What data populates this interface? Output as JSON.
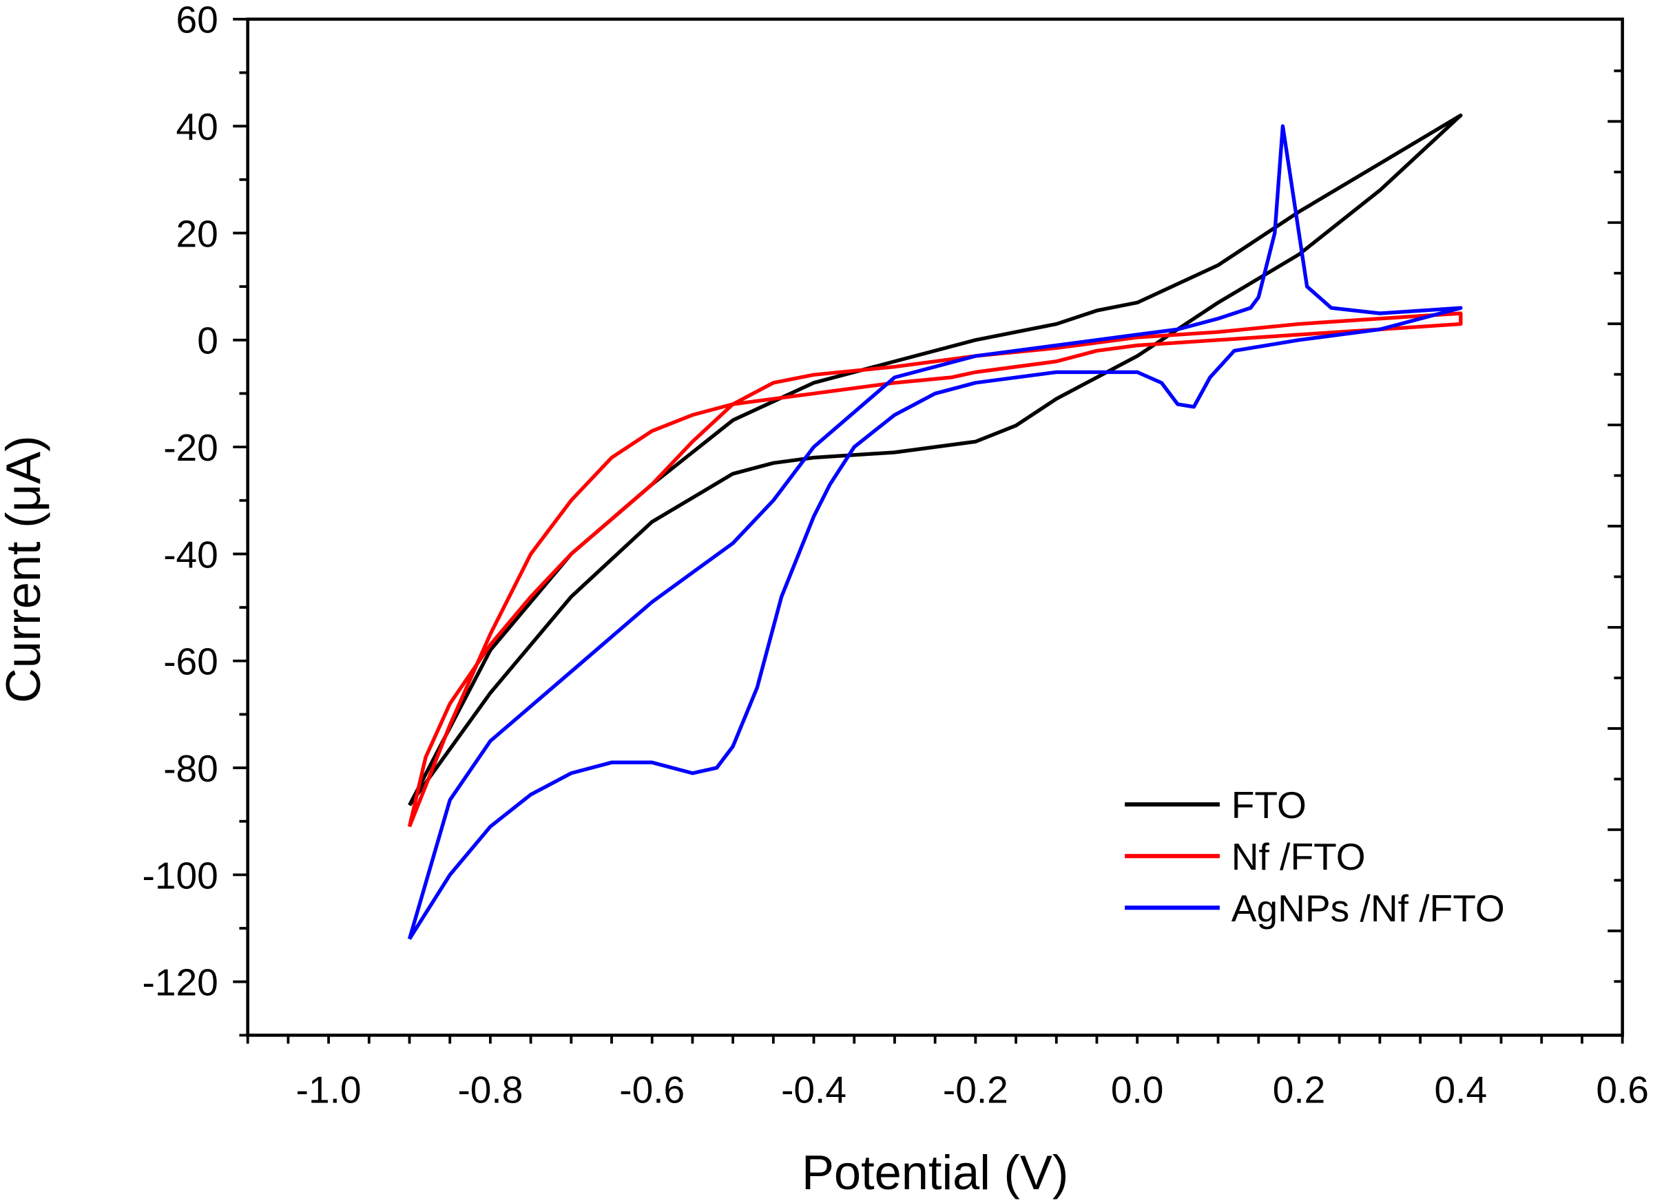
{
  "chart_data": {
    "type": "line",
    "title": "",
    "xlabel": "Potential (V)",
    "ylabel": "Current (μA)",
    "xlim": [
      -1.1,
      0.6
    ],
    "ylim": [
      -130,
      60
    ],
    "xticks": [
      "-1.0",
      "-0.8",
      "-0.6",
      "-0.4",
      "-0.2",
      "0.0",
      "0.2",
      "0.4",
      "0.6"
    ],
    "yticks": [
      "60",
      "40",
      "20",
      "0",
      "-20",
      "-40",
      "-60",
      "-80",
      "-100",
      "-120"
    ],
    "grid": false,
    "legend_position": "bottom-right",
    "series": [
      {
        "name": "FTO",
        "color": "#000000",
        "x": [
          -0.9,
          -0.8,
          -0.7,
          -0.6,
          -0.5,
          -0.4,
          -0.3,
          -0.2,
          -0.1,
          -0.05,
          0.0,
          0.1,
          0.2,
          0.3,
          0.4,
          0.3,
          0.2,
          0.1,
          0.0,
          -0.1,
          -0.15,
          -0.2,
          -0.3,
          -0.4,
          -0.45,
          -0.5,
          -0.6,
          -0.7,
          -0.8,
          -0.9
        ],
        "y": [
          -87,
          -58,
          -40,
          -27,
          -15,
          -8,
          -4,
          0,
          3,
          5.5,
          7,
          14,
          24,
          33,
          42,
          28,
          16,
          7,
          -3,
          -11,
          -16,
          -19,
          -21,
          -22,
          -23,
          -25,
          -34,
          -48,
          -66,
          -87
        ]
      },
      {
        "name": "Nf /FTO",
        "color": "#ff0000",
        "x": [
          -0.9,
          -0.88,
          -0.85,
          -0.8,
          -0.75,
          -0.7,
          -0.6,
          -0.55,
          -0.5,
          -0.45,
          -0.4,
          -0.3,
          -0.2,
          -0.1,
          0.0,
          0.1,
          0.2,
          0.3,
          0.4,
          0.4,
          0.3,
          0.2,
          0.1,
          0.0,
          -0.05,
          -0.1,
          -0.2,
          -0.23,
          -0.3,
          -0.4,
          -0.5,
          -0.55,
          -0.6,
          -0.65,
          -0.7,
          -0.75,
          -0.8,
          -0.85,
          -0.9
        ],
        "y": [
          -91,
          -78,
          -68,
          -57,
          -48,
          -40,
          -27,
          -19,
          -12,
          -8,
          -6.5,
          -5,
          -3,
          -1.5,
          0.5,
          1.5,
          3,
          4,
          5,
          3,
          2,
          1,
          0,
          -1,
          -2,
          -4,
          -6,
          -7,
          -8,
          -10,
          -12,
          -14,
          -17,
          -22,
          -30,
          -40,
          -55,
          -72,
          -91
        ]
      },
      {
        "name": "AgNPs /Nf /FTO",
        "color": "#0000ff",
        "x": [
          -0.9,
          -0.85,
          -0.8,
          -0.75,
          -0.7,
          -0.65,
          -0.6,
          -0.55,
          -0.52,
          -0.5,
          -0.47,
          -0.44,
          -0.4,
          -0.38,
          -0.35,
          -0.3,
          -0.25,
          -0.2,
          -0.1,
          0.0,
          0.03,
          0.05,
          0.07,
          0.09,
          0.12,
          0.2,
          0.3,
          0.4,
          0.4,
          0.3,
          0.24,
          0.21,
          0.19,
          0.18,
          0.17,
          0.15,
          0.14,
          0.1,
          0.05,
          0.0,
          -0.1,
          -0.2,
          -0.3,
          -0.4,
          -0.45,
          -0.5,
          -0.6,
          -0.7,
          -0.8,
          -0.85,
          -0.9
        ],
        "y": [
          -112,
          -100,
          -91,
          -85,
          -81,
          -79,
          -79,
          -81,
          -80,
          -76,
          -65,
          -48,
          -33,
          -27,
          -20,
          -14,
          -10,
          -8,
          -6,
          -6,
          -8,
          -12,
          -12.5,
          -7,
          -2,
          0,
          2,
          6,
          6,
          5,
          6,
          10,
          30,
          40,
          20,
          8,
          6,
          4,
          2,
          1,
          -1,
          -3,
          -7,
          -20,
          -30,
          -38,
          -49,
          -62,
          -75,
          -86,
          -112
        ]
      }
    ]
  }
}
